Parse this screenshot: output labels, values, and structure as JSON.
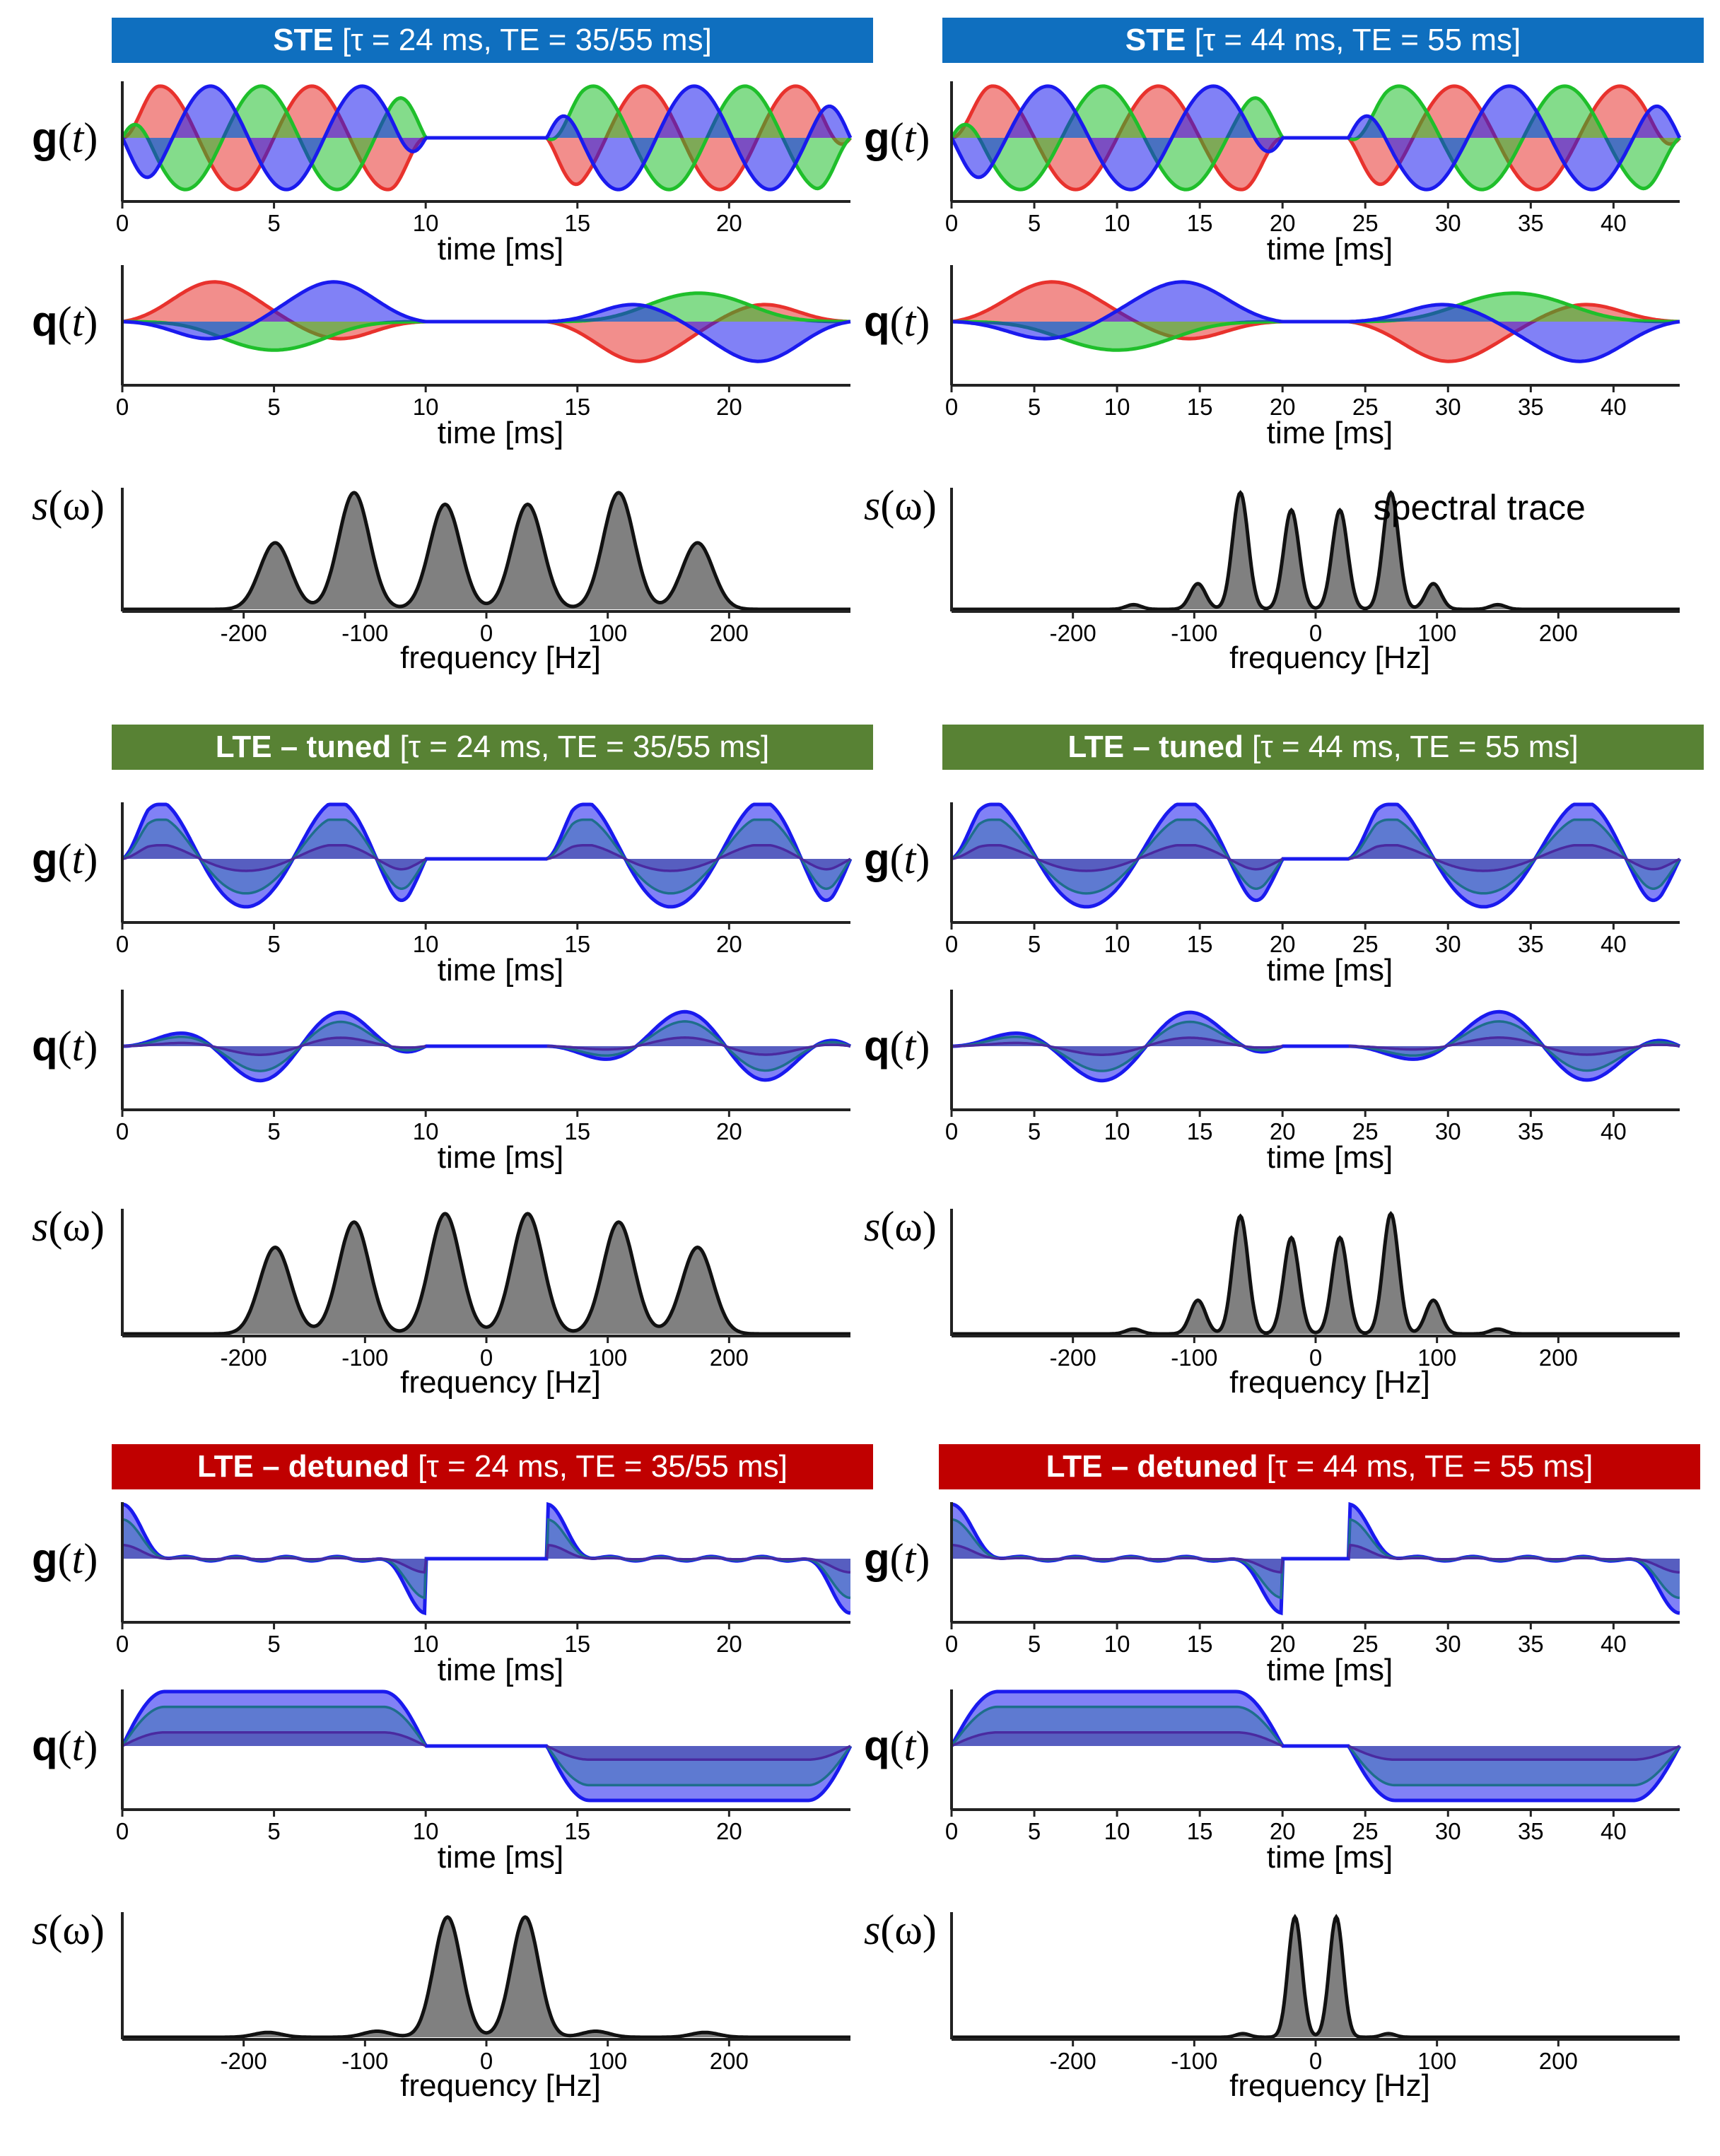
{
  "colors": {
    "ste": "#0f6fbf",
    "lte_tuned": "#588234",
    "lte_detuned": "#c00000",
    "x_axis": "#e8322d",
    "y_axis": "#1fbf2b",
    "z_axis": "#1a1aee",
    "dir1": "#1a1aee",
    "dir2": "#1e6e8c",
    "dir3": "#4a2aa0",
    "spectrum_fill": "#808080"
  },
  "labels": {
    "g": "g(t)",
    "q": "q(t)",
    "s": "s(ω)",
    "time_xlabel": "time [ms]",
    "freq_xlabel": "frequency [Hz]",
    "spectral_trace": "spectral trace"
  },
  "panels": [
    {
      "banner_bold": "STE",
      "banner_rest": " [τ = 24 ms, TE = 35/55 ms]",
      "color_key": "ste"
    },
    {
      "banner_bold": "STE",
      "banner_rest": " [τ = 44 ms, TE = 55 ms]",
      "color_key": "ste"
    },
    {
      "banner_bold": "LTE – tuned",
      "banner_rest": " [τ = 24 ms, TE = 35/55 ms]",
      "color_key": "lte_tuned"
    },
    {
      "banner_bold": "LTE – tuned",
      "banner_rest": " [τ = 44 ms, TE = 55 ms]",
      "color_key": "lte_tuned"
    },
    {
      "banner_bold": "LTE – detuned",
      "banner_rest": " [τ = 24 ms, TE = 35/55 ms]",
      "color_key": "lte_detuned"
    },
    {
      "banner_bold": "LTE – detuned",
      "banner_rest": " [τ = 44 ms, TE = 55 ms]",
      "color_key": "lte_detuned"
    }
  ],
  "chart_data": [
    {
      "type": "line",
      "title": "g(t) STE τ = 24 ms",
      "xlabel": "time [ms]",
      "ylabel": "g(t)",
      "xlim": [
        0,
        24
      ],
      "xticks": [
        0,
        5,
        10,
        15,
        20
      ],
      "pulse1": [
        0,
        10
      ],
      "pulse2": [
        14,
        24
      ],
      "series": [
        "x",
        "y",
        "z"
      ],
      "mode": "ste"
    },
    {
      "type": "line",
      "title": "q(t) STE τ = 24 ms",
      "xlabel": "time [ms]",
      "ylabel": "q(t)",
      "xlim": [
        0,
        24
      ],
      "xticks": [
        0,
        5,
        10,
        15,
        20
      ],
      "pulse1": [
        0,
        10
      ],
      "pulse2": [
        14,
        24
      ],
      "series": [
        "x",
        "y",
        "z"
      ],
      "mode": "ste"
    },
    {
      "type": "area",
      "title": "s(ω) STE τ = 24 ms",
      "xlabel": "frequency [Hz]",
      "ylabel": "s(ω)",
      "xlim": [
        -300,
        300
      ],
      "xticks": [
        -200,
        -100,
        0,
        100,
        200
      ],
      "peaks": [
        [
          -174,
          0.57
        ],
        [
          -109,
          1.0
        ],
        [
          -34,
          0.9
        ],
        [
          34,
          0.9
        ],
        [
          109,
          1.0
        ],
        [
          174,
          0.57
        ]
      ],
      "peak_width": 18
    },
    {
      "type": "line",
      "title": "g(t) STE τ = 44 ms",
      "xlabel": "time [ms]",
      "ylabel": "g(t)",
      "xlim": [
        0,
        44
      ],
      "xticks": [
        0,
        5,
        10,
        15,
        20,
        25,
        30,
        35,
        40
      ],
      "pulse1": [
        0,
        20
      ],
      "pulse2": [
        24,
        44
      ],
      "series": [
        "x",
        "y",
        "z"
      ],
      "mode": "ste"
    },
    {
      "type": "line",
      "title": "q(t) STE τ = 44 ms",
      "xlabel": "time [ms]",
      "ylabel": "q(t)",
      "xlim": [
        0,
        44
      ],
      "xticks": [
        0,
        5,
        10,
        15,
        20,
        25,
        30,
        35,
        40
      ],
      "pulse1": [
        0,
        20
      ],
      "pulse2": [
        24,
        44
      ],
      "series": [
        "x",
        "y",
        "z"
      ],
      "mode": "ste"
    },
    {
      "type": "area",
      "title": "s(ω) STE τ = 44 ms",
      "xlabel": "frequency [Hz]",
      "ylabel": "s(ω)",
      "xlim": [
        -300,
        300
      ],
      "xticks": [
        -200,
        -100,
        0,
        100,
        200
      ],
      "peaks": [
        [
          -150,
          0.04
        ],
        [
          -97,
          0.22
        ],
        [
          -62,
          1.0
        ],
        [
          -20,
          0.85
        ],
        [
          20,
          0.85
        ],
        [
          62,
          1.0
        ],
        [
          97,
          0.22
        ],
        [
          150,
          0.04
        ]
      ],
      "peak_width": 9,
      "annotation": "spectral trace"
    },
    {
      "type": "line",
      "title": "g(t) LTE tuned τ = 24 ms",
      "xlabel": "time [ms]",
      "ylabel": "g(t)",
      "xlim": [
        0,
        24
      ],
      "xticks": [
        0,
        5,
        10,
        15,
        20
      ],
      "pulse1": [
        0,
        10
      ],
      "pulse2": [
        14,
        24
      ],
      "series": [
        "dir1",
        "dir2",
        "dir3"
      ],
      "mode": "tuned"
    },
    {
      "type": "line",
      "title": "q(t) LTE tuned τ = 24 ms",
      "xlabel": "time [ms]",
      "ylabel": "q(t)",
      "xlim": [
        0,
        24
      ],
      "xticks": [
        0,
        5,
        10,
        15,
        20
      ],
      "pulse1": [
        0,
        10
      ],
      "pulse2": [
        14,
        24
      ],
      "series": [
        "dir1",
        "dir2",
        "dir3"
      ],
      "mode": "tuned"
    },
    {
      "type": "area",
      "title": "s(ω) LTE tuned τ = 24 ms",
      "xlabel": "frequency [Hz]",
      "ylabel": "s(ω)",
      "xlim": [
        -300,
        300
      ],
      "xticks": [
        -200,
        -100,
        0,
        100,
        200
      ],
      "peaks": [
        [
          -174,
          0.72
        ],
        [
          -109,
          0.93
        ],
        [
          -34,
          1.0
        ],
        [
          34,
          1.0
        ],
        [
          109,
          0.93
        ],
        [
          174,
          0.72
        ]
      ],
      "peak_width": 18
    },
    {
      "type": "line",
      "title": "g(t) LTE tuned τ = 44 ms",
      "xlabel": "time [ms]",
      "ylabel": "g(t)",
      "xlim": [
        0,
        44
      ],
      "xticks": [
        0,
        5,
        10,
        15,
        20,
        25,
        30,
        35,
        40
      ],
      "pulse1": [
        0,
        20
      ],
      "pulse2": [
        24,
        44
      ],
      "series": [
        "dir1",
        "dir2",
        "dir3"
      ],
      "mode": "tuned"
    },
    {
      "type": "line",
      "title": "q(t) LTE tuned τ = 44 ms",
      "xlabel": "time [ms]",
      "ylabel": "q(t)",
      "xlim": [
        0,
        44
      ],
      "xticks": [
        0,
        5,
        10,
        15,
        20,
        25,
        30,
        35,
        40
      ],
      "pulse1": [
        0,
        20
      ],
      "pulse2": [
        24,
        44
      ],
      "series": [
        "dir1",
        "dir2",
        "dir3"
      ],
      "mode": "tuned"
    },
    {
      "type": "area",
      "title": "s(ω) LTE tuned τ = 44 ms",
      "xlabel": "frequency [Hz]",
      "ylabel": "s(ω)",
      "xlim": [
        -300,
        300
      ],
      "xticks": [
        -200,
        -100,
        0,
        100,
        200
      ],
      "peaks": [
        [
          -150,
          0.04
        ],
        [
          -97,
          0.28
        ],
        [
          -62,
          0.98
        ],
        [
          -20,
          0.8
        ],
        [
          20,
          0.8
        ],
        [
          62,
          1.0
        ],
        [
          97,
          0.28
        ],
        [
          150,
          0.04
        ]
      ],
      "peak_width": 9
    },
    {
      "type": "line",
      "title": "g(t) LTE detuned τ = 24 ms",
      "xlabel": "time [ms]",
      "ylabel": "g(t)",
      "xlim": [
        0,
        24
      ],
      "xticks": [
        0,
        5,
        10,
        15,
        20
      ],
      "pulse1": [
        0,
        10
      ],
      "pulse2": [
        14,
        24
      ],
      "series": [
        "dir1",
        "dir2",
        "dir3"
      ],
      "mode": "detuned"
    },
    {
      "type": "line",
      "title": "q(t) LTE detuned τ = 24 ms",
      "xlabel": "time [ms]",
      "ylabel": "q(t)",
      "xlim": [
        0,
        24
      ],
      "xticks": [
        0,
        5,
        10,
        15,
        20
      ],
      "pulse1": [
        0,
        10
      ],
      "pulse2": [
        14,
        24
      ],
      "series": [
        "dir1",
        "dir2",
        "dir3"
      ],
      "mode": "detuned"
    },
    {
      "type": "area",
      "title": "s(ω) LTE detuned τ = 24 ms",
      "xlabel": "frequency [Hz]",
      "ylabel": "s(ω)",
      "xlim": [
        -300,
        300
      ],
      "xticks": [
        -200,
        -100,
        0,
        100,
        200
      ],
      "peaks": [
        [
          -180,
          0.04
        ],
        [
          -90,
          0.05
        ],
        [
          -32,
          1.0
        ],
        [
          32,
          1.0
        ],
        [
          90,
          0.05
        ],
        [
          180,
          0.04
        ]
      ],
      "peak_width": 16
    },
    {
      "type": "line",
      "title": "g(t) LTE detuned τ = 44 ms",
      "xlabel": "time [ms]",
      "ylabel": "g(t)",
      "xlim": [
        0,
        44
      ],
      "xticks": [
        0,
        5,
        10,
        15,
        20,
        25,
        30,
        35,
        40
      ],
      "pulse1": [
        0,
        20
      ],
      "pulse2": [
        24,
        44
      ],
      "series": [
        "dir1",
        "dir2",
        "dir3"
      ],
      "mode": "detuned"
    },
    {
      "type": "line",
      "title": "q(t) LTE detuned τ = 44 ms",
      "xlabel": "time [ms]",
      "ylabel": "q(t)",
      "xlim": [
        0,
        44
      ],
      "xticks": [
        0,
        5,
        10,
        15,
        20,
        25,
        30,
        35,
        40
      ],
      "pulse1": [
        0,
        20
      ],
      "pulse2": [
        24,
        44
      ],
      "series": [
        "dir1",
        "dir2",
        "dir3"
      ],
      "mode": "detuned"
    },
    {
      "type": "area",
      "title": "s(ω) LTE detuned τ = 44 ms",
      "xlabel": "frequency [Hz]",
      "ylabel": "s(ω)",
      "xlim": [
        -300,
        300
      ],
      "xticks": [
        -200,
        -100,
        0,
        100,
        200
      ],
      "peaks": [
        [
          -60,
          0.03
        ],
        [
          -17,
          1.0
        ],
        [
          17,
          1.0
        ],
        [
          60,
          0.03
        ]
      ],
      "peak_width": 8
    }
  ]
}
